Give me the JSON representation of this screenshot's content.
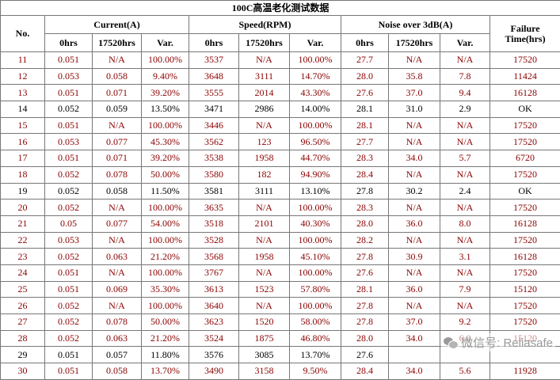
{
  "title": "100C高温老化测试数据",
  "headers": {
    "no": "No.",
    "current_group": "Current(A)",
    "speed_group": "Speed(RPM)",
    "noise_group": "Noise over 3dB(A)",
    "failure_line1": "Failure",
    "failure_line2": "Time(hrs)",
    "sub_0hrs": "0hrs",
    "sub_17520hrs": "17520hrs",
    "sub_var": "Var."
  },
  "rows": [
    {
      "no": "11",
      "c0": "0.051",
      "c1": "N/A",
      "cv": "100.00%",
      "s0": "3537",
      "s1": "N/A",
      "sv": "100.00%",
      "n0": "27.7",
      "n1": "N/A",
      "nv": "N/A",
      "fail": "17520",
      "status": "fail"
    },
    {
      "no": "12",
      "c0": "0.053",
      "c1": "0.058",
      "cv": "9.40%",
      "s0": "3648",
      "s1": "3111",
      "sv": "14.70%",
      "n0": "28.0",
      "n1": "35.8",
      "nv": "7.8",
      "fail": "11424",
      "status": "fail"
    },
    {
      "no": "13",
      "c0": "0.051",
      "c1": "0.071",
      "cv": "39.20%",
      "s0": "3555",
      "s1": "2014",
      "sv": "43.30%",
      "n0": "27.6",
      "n1": "37.0",
      "nv": "9.4",
      "fail": "16128",
      "status": "fail"
    },
    {
      "no": "14",
      "c0": "0.052",
      "c1": "0.059",
      "cv": "13.50%",
      "s0": "3471",
      "s1": "2986",
      "sv": "14.00%",
      "n0": "28.1",
      "n1": "31.0",
      "nv": "2.9",
      "fail": "OK",
      "status": "ok"
    },
    {
      "no": "15",
      "c0": "0.051",
      "c1": "N/A",
      "cv": "100.00%",
      "s0": "3446",
      "s1": "N/A",
      "sv": "100.00%",
      "n0": "28.1",
      "n1": "N/A",
      "nv": "N/A",
      "fail": "17520",
      "status": "fail"
    },
    {
      "no": "16",
      "c0": "0.053",
      "c1": "0.077",
      "cv": "45.30%",
      "s0": "3562",
      "s1": "123",
      "sv": "96.50%",
      "n0": "27.7",
      "n1": "N/A",
      "nv": "N/A",
      "fail": "17520",
      "status": "fail"
    },
    {
      "no": "17",
      "c0": "0.051",
      "c1": "0.071",
      "cv": "39.20%",
      "s0": "3538",
      "s1": "1958",
      "sv": "44.70%",
      "n0": "28.3",
      "n1": "34.0",
      "nv": "5.7",
      "fail": "6720",
      "status": "fail"
    },
    {
      "no": "18",
      "c0": "0.052",
      "c1": "0.078",
      "cv": "50.00%",
      "s0": "3580",
      "s1": "182",
      "sv": "94.90%",
      "n0": "28.4",
      "n1": "N/A",
      "nv": "N/A",
      "fail": "17520",
      "status": "fail"
    },
    {
      "no": "19",
      "c0": "0.052",
      "c1": "0.058",
      "cv": "11.50%",
      "s0": "3581",
      "s1": "3111",
      "sv": "13.10%",
      "n0": "27.8",
      "n1": "30.2",
      "nv": "2.4",
      "fail": "OK",
      "status": "ok"
    },
    {
      "no": "20",
      "c0": "0.052",
      "c1": "N/A",
      "cv": "100.00%",
      "s0": "3635",
      "s1": "N/A",
      "sv": "100.00%",
      "n0": "28.3",
      "n1": "N/A",
      "nv": "N/A",
      "fail": "17520",
      "status": "fail"
    },
    {
      "no": "21",
      "c0": "0.05",
      "c1": "0.077",
      "cv": "54.00%",
      "s0": "3518",
      "s1": "2101",
      "sv": "40.30%",
      "n0": "28.0",
      "n1": "36.0",
      "nv": "8.0",
      "fail": "16128",
      "status": "fail"
    },
    {
      "no": "22",
      "c0": "0.053",
      "c1": "N/A",
      "cv": "100.00%",
      "s0": "3528",
      "s1": "N/A",
      "sv": "100.00%",
      "n0": "28.2",
      "n1": "N/A",
      "nv": "N/A",
      "fail": "17520",
      "status": "fail"
    },
    {
      "no": "23",
      "c0": "0.052",
      "c1": "0.063",
      "cv": "21.20%",
      "s0": "3568",
      "s1": "1958",
      "sv": "45.10%",
      "n0": "27.8",
      "n1": "30.9",
      "nv": "3.1",
      "fail": "16128",
      "status": "fail"
    },
    {
      "no": "24",
      "c0": "0.051",
      "c1": "N/A",
      "cv": "100.00%",
      "s0": "3767",
      "s1": "N/A",
      "sv": "100.00%",
      "n0": "27.6",
      "n1": "N/A",
      "nv": "N/A",
      "fail": "17520",
      "status": "fail"
    },
    {
      "no": "25",
      "c0": "0.051",
      "c1": "0.069",
      "cv": "35.30%",
      "s0": "3613",
      "s1": "1523",
      "sv": "57.80%",
      "n0": "28.1",
      "n1": "36.0",
      "nv": "7.9",
      "fail": "15120",
      "status": "fail"
    },
    {
      "no": "26",
      "c0": "0.052",
      "c1": "N/A",
      "cv": "100.00%",
      "s0": "3640",
      "s1": "N/A",
      "sv": "100.00%",
      "n0": "27.8",
      "n1": "N/A",
      "nv": "N/A",
      "fail": "17520",
      "status": "fail"
    },
    {
      "no": "27",
      "c0": "0.052",
      "c1": "0.078",
      "cv": "50.00%",
      "s0": "3623",
      "s1": "1520",
      "sv": "58.00%",
      "n0": "27.8",
      "n1": "37.0",
      "nv": "9.2",
      "fail": "17520",
      "status": "fail"
    },
    {
      "no": "28",
      "c0": "0.052",
      "c1": "0.063",
      "cv": "21.20%",
      "s0": "3524",
      "s1": "1875",
      "sv": "46.80%",
      "n0": "28.0",
      "n1": "34.0",
      "nv": "6.0",
      "fail": "15120",
      "status": "fail"
    },
    {
      "no": "29",
      "c0": "0.051",
      "c1": "0.057",
      "cv": "11.80%",
      "s0": "3576",
      "s1": "3085",
      "sv": "13.70%",
      "n0": "27.6",
      "n1": "",
      "nv": "",
      "fail": "",
      "status": "ok"
    },
    {
      "no": "30",
      "c0": "0.051",
      "c1": "0.058",
      "cv": "13.70%",
      "s0": "3490",
      "s1": "3158",
      "sv": "9.50%",
      "n0": "28.4",
      "n1": "34.0",
      "nv": "5.6",
      "fail": "11928",
      "status": "fail"
    }
  ],
  "watermark": {
    "icon": "wechat-icon",
    "text": "微信号: Reliasafe"
  },
  "colors": {
    "fail_text": "#8b0000",
    "ok_text": "#000000",
    "border": "#777777"
  }
}
